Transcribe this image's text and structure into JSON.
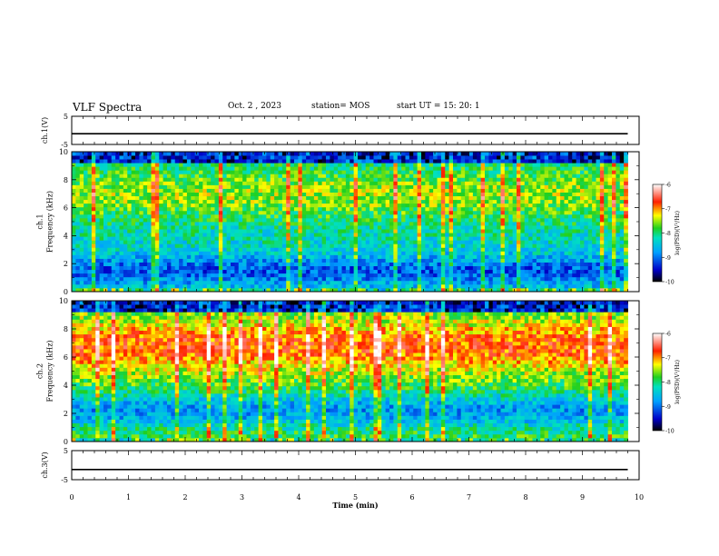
{
  "header": {
    "title": "VLF Spectra",
    "date": "Oct. 2 , 2023",
    "station": "station= MOS",
    "start_ut": "start UT = 15: 20: 1"
  },
  "chart_data": [
    {
      "type": "line",
      "panel": "ch1-waveform",
      "ylabel": "ch.1(V)",
      "ylim": [
        -5,
        5
      ],
      "yticks": [
        "5",
        "-5"
      ],
      "xlim": [
        0,
        10
      ],
      "series": [
        {
          "x": [
            0,
            9.8
          ],
          "values": [
            -1.2,
            -1.2
          ]
        }
      ],
      "grid": false
    },
    {
      "type": "heatmap",
      "panel": "ch1-spectrogram",
      "ylabel": "ch.1\nFrequency (kHz)",
      "ylim": [
        0,
        10
      ],
      "yticks": [
        "0",
        "2",
        "4",
        "6",
        "8",
        "10"
      ],
      "xlim": [
        0,
        10
      ],
      "data_extent_x": [
        0,
        9.8
      ],
      "colorbar": {
        "label": "log(PSD)(V²/Hz)",
        "range": [
          -10,
          -6
        ],
        "ticks": [
          "-6",
          "-7",
          "-8",
          "-9",
          "-10"
        ]
      }
    },
    {
      "type": "heatmap",
      "panel": "ch2-spectrogram",
      "ylabel": "ch.2\nFrequency (kHz)",
      "ylim": [
        0,
        10
      ],
      "yticks": [
        "0",
        "2",
        "4",
        "6",
        "8",
        "10"
      ],
      "xlim": [
        0,
        10
      ],
      "data_extent_x": [
        0,
        9.8
      ],
      "colorbar": {
        "label": "log(PSD)(V²/Hz)",
        "range": [
          -10,
          -6
        ],
        "ticks": [
          "-6",
          "-7",
          "-8",
          "-9",
          "-10"
        ]
      }
    },
    {
      "type": "line",
      "panel": "ch3-waveform",
      "ylabel": "ch.3(V)",
      "ylim": [
        -5,
        5
      ],
      "yticks": [
        "5",
        "-5"
      ],
      "xlim": [
        0,
        10
      ],
      "xlabel": "Time  (min)",
      "xticks": [
        "0",
        "1",
        "2",
        "3",
        "4",
        "5",
        "6",
        "7",
        "8",
        "9",
        "10"
      ],
      "series": [
        {
          "x": [
            0,
            9.8
          ],
          "values": [
            -1.5,
            -1.5
          ]
        }
      ],
      "grid": false
    }
  ]
}
